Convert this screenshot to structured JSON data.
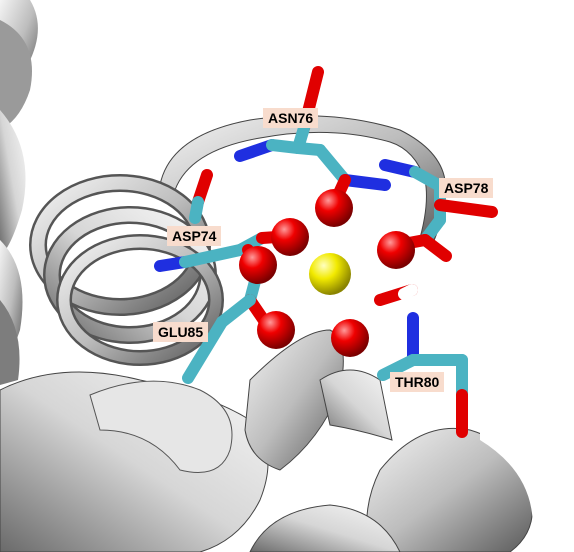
{
  "residues": [
    {
      "name": "ASN76"
    },
    {
      "name": "ASP78"
    },
    {
      "name": "ASP74"
    },
    {
      "name": "GLU85"
    },
    {
      "name": "THR80"
    }
  ],
  "colors": {
    "background": "#ffffff",
    "ribbon": "#c8c8c8",
    "carbon": "#4bb3c2",
    "oxygen": "#e00000",
    "nitrogen": "#1f2fe0",
    "ion": "#f2ea00",
    "hydrogen": "#ffffff",
    "label_bg": "#f8dccd"
  }
}
